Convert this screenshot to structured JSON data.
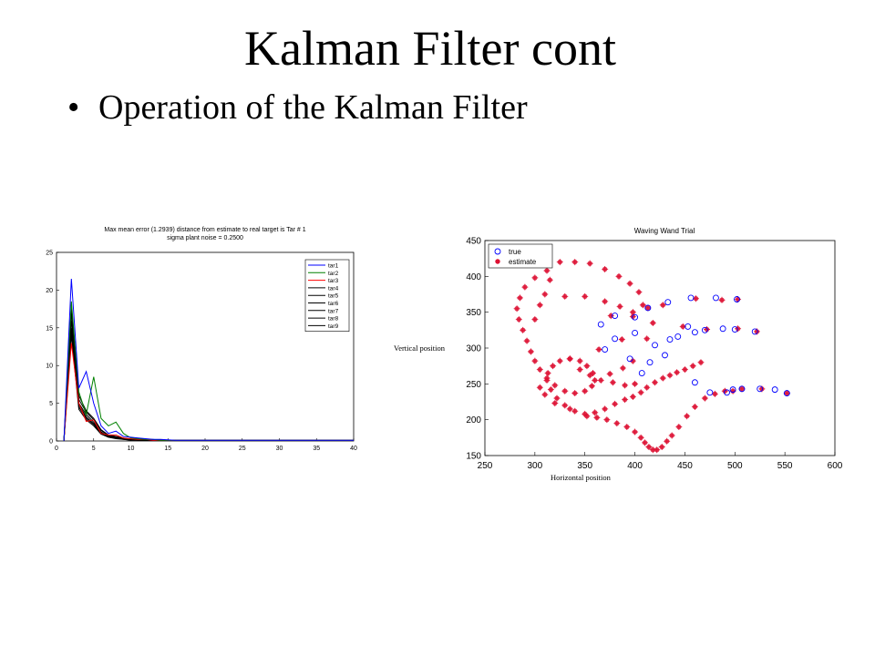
{
  "slide": {
    "title": "Kalman Filter cont",
    "bullet": "Operation of the Kalman Filter"
  },
  "chart_data": [
    {
      "type": "line",
      "title": "Max mean error (1.2939) distance from estimate to real target is Tar # 1",
      "subtitle": "sigma plant noise = 0.2500",
      "xlabel": "",
      "ylabel": "",
      "xlim": [
        0,
        40
      ],
      "ylim": [
        0,
        25
      ],
      "xticks": [
        0,
        5,
        10,
        15,
        20,
        25,
        30,
        35,
        40
      ],
      "yticks": [
        0,
        5,
        10,
        15,
        20,
        25
      ],
      "legend_position": "top-right",
      "x": [
        1,
        2,
        3,
        4,
        5,
        6,
        7,
        8,
        9,
        10,
        11,
        12,
        13,
        14,
        15,
        16,
        17,
        18,
        19,
        20,
        21,
        22,
        23,
        24,
        25,
        26,
        27,
        28,
        29,
        30,
        31,
        32,
        33,
        34,
        35,
        36,
        37,
        38,
        39,
        40
      ],
      "series": [
        {
          "name": "tar1",
          "color": "#0000ff",
          "values": [
            0,
            21.5,
            7,
            9.2,
            5,
            2,
            1,
            1.3,
            0.6,
            0.5,
            0.4,
            0.3,
            0.2,
            0.2,
            0.15,
            0.1,
            0.1,
            0.1,
            0.1,
            0.1,
            0.1,
            0.1,
            0.1,
            0.1,
            0.1,
            0.1,
            0.1,
            0.1,
            0.1,
            0.1,
            0.1,
            0.1,
            0.1,
            0.1,
            0.1,
            0.1,
            0.1,
            0.1,
            0.1,
            0.1
          ]
        },
        {
          "name": "tar2",
          "color": "#008000",
          "values": [
            0,
            18.5,
            6.5,
            3.5,
            8.5,
            3,
            2,
            2.5,
            1,
            0.4,
            0.3,
            0.2,
            0.2,
            0.1,
            0.1,
            0.1,
            0.1,
            0.1,
            0.1,
            0.1,
            0.1,
            0.1,
            0.1,
            0.1,
            0.1,
            0.1,
            0.1,
            0.1,
            0.1,
            0.1,
            0.1,
            0.1,
            0.1,
            0.1,
            0.1,
            0.1,
            0.1,
            0.1,
            0.1,
            0.1
          ]
        },
        {
          "name": "tar3",
          "color": "#ff0000",
          "values": [
            0,
            13,
            5,
            2.6,
            2.8,
            1,
            0.8,
            0.8,
            0.4,
            0.3,
            0.2,
            0.2,
            0.1,
            0.1,
            0.1,
            0.1,
            0.1,
            0.1,
            0.1,
            0.1,
            0.1,
            0.1,
            0.1,
            0.1,
            0.1,
            0.1,
            0.1,
            0.1,
            0.1,
            0.1,
            0.1,
            0.1,
            0.1,
            0.1,
            0.1,
            0.1,
            0.1,
            0.1,
            0.1,
            0.1
          ]
        },
        {
          "name": "tar4",
          "color": "#000000",
          "values": [
            0,
            18,
            6,
            4,
            3,
            1.5,
            0.8,
            0.6,
            0.4,
            0.2,
            0.15,
            0.1,
            0.1,
            0.1,
            0.1,
            0.1,
            0.1,
            0.1,
            0.1,
            0.1,
            0.1,
            0.1,
            0.1,
            0.1,
            0.1,
            0.1,
            0.1,
            0.1,
            0.1,
            0.1,
            0.1,
            0.1,
            0.1,
            0.1,
            0.1,
            0.1,
            0.1,
            0.1,
            0.1,
            0.1
          ]
        },
        {
          "name": "tar5",
          "color": "#000000",
          "values": [
            0,
            17,
            5.5,
            3.8,
            2.8,
            1.4,
            0.7,
            0.5,
            0.3,
            0.2,
            0.1,
            0.1,
            0.1,
            0.1,
            0.1,
            0.1,
            0.1,
            0.1,
            0.1,
            0.1,
            0.1,
            0.1,
            0.1,
            0.1,
            0.1,
            0.1,
            0.1,
            0.1,
            0.1,
            0.1,
            0.1,
            0.1,
            0.1,
            0.1,
            0.1,
            0.1,
            0.1,
            0.1,
            0.1,
            0.1
          ]
        },
        {
          "name": "tar6",
          "color": "#000000",
          "values": [
            0,
            16,
            5,
            3.5,
            2.5,
            1.2,
            0.6,
            0.5,
            0.3,
            0.2,
            0.1,
            0.1,
            0.1,
            0.1,
            0.1,
            0.1,
            0.1,
            0.1,
            0.1,
            0.1,
            0.1,
            0.1,
            0.1,
            0.1,
            0.1,
            0.1,
            0.1,
            0.1,
            0.1,
            0.1,
            0.1,
            0.1,
            0.1,
            0.1,
            0.1,
            0.1,
            0.1,
            0.1,
            0.1,
            0.1
          ]
        },
        {
          "name": "tar7",
          "color": "#000000",
          "values": [
            0,
            15,
            4.8,
            3.2,
            2.3,
            1.1,
            0.6,
            0.4,
            0.3,
            0.2,
            0.1,
            0.1,
            0.1,
            0.1,
            0.1,
            0.1,
            0.1,
            0.1,
            0.1,
            0.1,
            0.1,
            0.1,
            0.1,
            0.1,
            0.1,
            0.1,
            0.1,
            0.1,
            0.1,
            0.1,
            0.1,
            0.1,
            0.1,
            0.1,
            0.1,
            0.1,
            0.1,
            0.1,
            0.1,
            0.1
          ]
        },
        {
          "name": "tar8",
          "color": "#000000",
          "values": [
            0,
            14.5,
            4.5,
            3,
            2.2,
            1,
            0.5,
            0.4,
            0.2,
            0.15,
            0.1,
            0.1,
            0.1,
            0.1,
            0.1,
            0.1,
            0.1,
            0.1,
            0.1,
            0.1,
            0.1,
            0.1,
            0.1,
            0.1,
            0.1,
            0.1,
            0.1,
            0.1,
            0.1,
            0.1,
            0.1,
            0.1,
            0.1,
            0.1,
            0.1,
            0.1,
            0.1,
            0.1,
            0.1,
            0.1
          ]
        },
        {
          "name": "tar9",
          "color": "#000000",
          "values": [
            0,
            14,
            4.2,
            2.8,
            2,
            0.9,
            0.5,
            0.3,
            0.2,
            0.1,
            0.1,
            0.1,
            0.1,
            0.1,
            0.1,
            0.1,
            0.1,
            0.1,
            0.1,
            0.1,
            0.1,
            0.1,
            0.1,
            0.1,
            0.1,
            0.1,
            0.1,
            0.1,
            0.1,
            0.1,
            0.1,
            0.1,
            0.1,
            0.1,
            0.1,
            0.1,
            0.1,
            0.1,
            0.1,
            0.1
          ]
        }
      ]
    },
    {
      "type": "scatter",
      "title": "Waving Wand Trial",
      "xlabel": "Horizontal position",
      "ylabel": "Vertical position",
      "xlim": [
        250,
        600
      ],
      "ylim": [
        150,
        450
      ],
      "xticks": [
        250,
        300,
        350,
        400,
        450,
        500,
        550,
        600
      ],
      "yticks": [
        150,
        200,
        250,
        300,
        350,
        400,
        450
      ],
      "legend_position": "top-left",
      "series": [
        {
          "name": "true",
          "color": "#0000ff",
          "marker": "circle-open",
          "points": [
            [
              456,
              370
            ],
            [
              481,
              370
            ],
            [
              502,
              368
            ],
            [
              470,
              325
            ],
            [
              500,
              326
            ],
            [
              520,
              323
            ],
            [
              492,
              238
            ],
            [
              507,
              243
            ],
            [
              525,
              243
            ],
            [
              540,
              242
            ],
            [
              552,
              237
            ],
            [
              380,
              345
            ],
            [
              400,
              343
            ],
            [
              413,
              356
            ],
            [
              433,
              364
            ],
            [
              443,
              316
            ],
            [
              453,
              330
            ],
            [
              366,
              333
            ],
            [
              380,
              313
            ],
            [
              370,
              298
            ],
            [
              400,
              321
            ],
            [
              420,
              304
            ],
            [
              435,
              312
            ],
            [
              460,
              322
            ],
            [
              488,
              327
            ],
            [
              407,
              265
            ],
            [
              395,
              285
            ],
            [
              415,
              280
            ],
            [
              430,
              290
            ],
            [
              460,
              252
            ],
            [
              475,
              238
            ],
            [
              498,
              242
            ]
          ]
        },
        {
          "name": "estimate",
          "color": "#dd1133",
          "marker": "star",
          "points": [
            [
              461,
              369
            ],
            [
              487,
              367
            ],
            [
              503,
              368
            ],
            [
              472,
              326
            ],
            [
              503,
              327
            ],
            [
              522,
              323
            ],
            [
              490,
              240
            ],
            [
              507,
              243
            ],
            [
              527,
              243
            ],
            [
              552,
              237
            ],
            [
              376,
              345
            ],
            [
              398,
              344
            ],
            [
              408,
              360
            ],
            [
              413,
              356
            ],
            [
              428,
              360
            ],
            [
              448,
              330
            ],
            [
              412,
              313
            ],
            [
              387,
              312
            ],
            [
              364,
              298
            ],
            [
              325,
              420
            ],
            [
              312,
              408
            ],
            [
              300,
              398
            ],
            [
              290,
              385
            ],
            [
              285,
              370
            ],
            [
              282,
              355
            ],
            [
              284,
              340
            ],
            [
              288,
              325
            ],
            [
              292,
              310
            ],
            [
              296,
              295
            ],
            [
              300,
              282
            ],
            [
              305,
              270
            ],
            [
              312,
              258
            ],
            [
              320,
              248
            ],
            [
              330,
              240
            ],
            [
              340,
              237
            ],
            [
              350,
              240
            ],
            [
              357,
              247
            ],
            [
              360,
              255
            ],
            [
              358,
              265
            ],
            [
              352,
              275
            ],
            [
              345,
              282
            ],
            [
              335,
              285
            ],
            [
              325,
              282
            ],
            [
              318,
              275
            ],
            [
              313,
              265
            ],
            [
              312,
              255
            ],
            [
              316,
              242
            ],
            [
              322,
              230
            ],
            [
              330,
              220
            ],
            [
              340,
              212
            ],
            [
              350,
              208
            ],
            [
              360,
              210
            ],
            [
              370,
              215
            ],
            [
              380,
              222
            ],
            [
              390,
              228
            ],
            [
              398,
              232
            ],
            [
              406,
              238
            ],
            [
              412,
              245
            ],
            [
              420,
              252
            ],
            [
              428,
              258
            ],
            [
              435,
              262
            ],
            [
              442,
              266
            ],
            [
              450,
              270
            ],
            [
              458,
              275
            ],
            [
              466,
              280
            ],
            [
              310,
              375
            ],
            [
              330,
              372
            ],
            [
              350,
              372
            ],
            [
              370,
              365
            ],
            [
              385,
              358
            ],
            [
              398,
              350
            ],
            [
              300,
              340
            ],
            [
              305,
              360
            ],
            [
              315,
              395
            ],
            [
              340,
              420
            ],
            [
              355,
              418
            ],
            [
              370,
              410
            ],
            [
              384,
              400
            ],
            [
              395,
              390
            ],
            [
              404,
              378
            ],
            [
              418,
              335
            ],
            [
              305,
              245
            ],
            [
              310,
              235
            ],
            [
              320,
              223
            ],
            [
              335,
              215
            ],
            [
              352,
              205
            ],
            [
              362,
              203
            ],
            [
              372,
              200
            ],
            [
              382,
              195
            ],
            [
              392,
              190
            ],
            [
              400,
              183
            ],
            [
              406,
              175
            ],
            [
              410,
              168
            ],
            [
              414,
              162
            ],
            [
              418,
              158
            ],
            [
              422,
              158
            ],
            [
              427,
              162
            ],
            [
              432,
              170
            ],
            [
              437,
              178
            ],
            [
              444,
              190
            ],
            [
              452,
              205
            ],
            [
              460,
              218
            ],
            [
              470,
              230
            ],
            [
              480,
              236
            ],
            [
              498,
              240
            ],
            [
              335,
              285
            ],
            [
              345,
              270
            ],
            [
              355,
              262
            ],
            [
              366,
              255
            ],
            [
              378,
              252
            ],
            [
              390,
              248
            ],
            [
              400,
              250
            ],
            [
              375,
              264
            ],
            [
              388,
              272
            ],
            [
              398,
              282
            ]
          ]
        }
      ]
    }
  ]
}
